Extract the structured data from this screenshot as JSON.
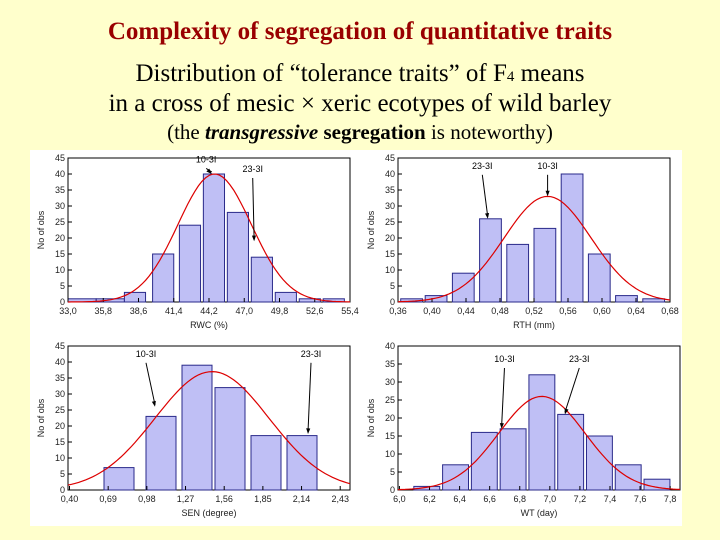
{
  "header": {
    "title": "Complexity of segregation of quantitative traits",
    "line1_pre": "Distribution of “tolerance traits” of F",
    "line1_sub": "4",
    "line1_post": " means",
    "line2": "in a cross of mesic × xeric ecotypes of wild barley",
    "line3_pre": "(the ",
    "line3_em": "transgressive",
    "line3_strong": " segregation",
    "line3_post": " is noteworthy)"
  },
  "colors": {
    "bar_fill": "#bfbff5",
    "bar_stroke": "#2a2a8a",
    "curve": "#dd0000",
    "axis": "#000000"
  },
  "chart_data": [
    {
      "type": "bar",
      "xlabel": "RWC (%)",
      "ylabel": "No of obs",
      "xticks": [
        "33,0",
        "35,8",
        "38,6",
        "41,4",
        "44,2",
        "47,0",
        "49,8",
        "52,6",
        "55,4"
      ],
      "ylim": [
        0,
        45
      ],
      "yticks": [
        0,
        5,
        10,
        15,
        20,
        25,
        30,
        35,
        40,
        45
      ],
      "bins": [
        {
          "lo": 0,
          "hi": 1,
          "count": 1
        },
        {
          "lo": 1,
          "hi": 2,
          "count": 1
        },
        {
          "lo": 2,
          "hi": 2.75,
          "count": 3
        },
        {
          "lo": 3,
          "hi": 3.75,
          "count": 15
        },
        {
          "lo": 3.95,
          "hi": 4.7,
          "count": 24
        },
        {
          "lo": 4.8,
          "hi": 5.55,
          "count": 40
        },
        {
          "lo": 5.65,
          "hi": 6.4,
          "count": 28
        },
        {
          "lo": 6.5,
          "hi": 7.25,
          "count": 14
        },
        {
          "lo": 7.35,
          "hi": 8.1,
          "count": 3
        },
        {
          "lo": 8.2,
          "hi": 8.95,
          "count": 1
        },
        {
          "lo": 9.05,
          "hi": 9.8,
          "count": 1
        }
      ],
      "curve": {
        "mean": 5.2,
        "sd": 1.3,
        "peak": 40
      },
      "annotations": [
        {
          "label": "10-3I",
          "x": 5.1,
          "y": 40,
          "label_x": 4.9,
          "label_y": 43
        },
        {
          "label": "23-3I",
          "x": 6.6,
          "y": 19,
          "label_x": 6.55,
          "label_y": 40
        }
      ]
    },
    {
      "type": "bar",
      "xlabel": "RTH (mm)",
      "ylabel": "No of obs",
      "xticks": [
        "0,36",
        "0,40",
        "0,44",
        "0,48",
        "0,52",
        "0,56",
        "0,60",
        "0,64",
        "0,68"
      ],
      "ylim": [
        0,
        45
      ],
      "yticks": [
        0,
        5,
        10,
        15,
        20,
        25,
        30,
        35,
        40,
        45
      ],
      "bins": [
        {
          "lo": 0.1,
          "hi": 0.9,
          "count": 1
        },
        {
          "lo": 1,
          "hi": 1.8,
          "count": 2
        },
        {
          "lo": 2,
          "hi": 2.8,
          "count": 9
        },
        {
          "lo": 3,
          "hi": 3.8,
          "count": 26
        },
        {
          "lo": 4,
          "hi": 4.8,
          "count": 18
        },
        {
          "lo": 5,
          "hi": 5.8,
          "count": 23
        },
        {
          "lo": 6,
          "hi": 6.8,
          "count": 40
        },
        {
          "lo": 7,
          "hi": 7.8,
          "count": 15
        },
        {
          "lo": 8,
          "hi": 8.8,
          "count": 2
        },
        {
          "lo": 9,
          "hi": 9.8,
          "count": 1
        }
      ],
      "curve": {
        "mean": 5.5,
        "sd": 1.6,
        "peak": 33
      },
      "annotations": [
        {
          "label": "23-3I",
          "x": 3.3,
          "y": 26,
          "label_x": 3.1,
          "label_y": 41
        },
        {
          "label": "10-3I",
          "x": 5.5,
          "y": 33,
          "label_x": 5.5,
          "label_y": 41
        }
      ]
    },
    {
      "type": "bar",
      "xlabel": "SEN (degree)",
      "ylabel": "No of obs",
      "xticks": [
        "0,40",
        "0,69",
        "0,98",
        "1,27",
        "1,56",
        "1,85",
        "2,14",
        "2,43"
      ],
      "ylim": [
        0,
        45
      ],
      "yticks": [
        0,
        5,
        10,
        15,
        20,
        25,
        30,
        35,
        40,
        45
      ],
      "bins": [
        {
          "lo": 1.2,
          "hi": 2.2,
          "count": 7
        },
        {
          "lo": 2.6,
          "hi": 3.6,
          "count": 23
        },
        {
          "lo": 3.8,
          "hi": 4.8,
          "count": 39
        },
        {
          "lo": 4.9,
          "hi": 5.9,
          "count": 32
        },
        {
          "lo": 6.1,
          "hi": 7.1,
          "count": 17
        },
        {
          "lo": 7.3,
          "hi": 8.3,
          "count": 17
        }
      ],
      "curve": {
        "mean": 4.8,
        "sd": 1.9,
        "peak": 37
      },
      "annotations": [
        {
          "label": "10-3I",
          "x": 2.9,
          "y": 26,
          "label_x": 2.6,
          "label_y": 41
        },
        {
          "label": "23-3I",
          "x": 8.0,
          "y": 17.5,
          "label_x": 8.1,
          "label_y": 41
        }
      ],
      "xlim": [
        0,
        9.4
      ]
    },
    {
      "type": "bar",
      "xlabel": "WT (day)",
      "ylabel": "No of obs",
      "xticks": [
        "6,0",
        "6,2",
        "6,4",
        "6,6",
        "6,8",
        "7,0",
        "7,2",
        "7,4",
        "7,6",
        "7,8"
      ],
      "ylim": [
        0,
        40
      ],
      "yticks": [
        0,
        5,
        10,
        15,
        20,
        25,
        30,
        35,
        40
      ],
      "bins": [
        {
          "lo": 0.05,
          "hi": 0.45,
          "count": 0
        },
        {
          "lo": 0.55,
          "hi": 1.45,
          "count": 1
        },
        {
          "lo": 1.55,
          "hi": 2.45,
          "count": 7
        },
        {
          "lo": 2.55,
          "hi": 3.45,
          "count": 16
        },
        {
          "lo": 3.55,
          "hi": 4.45,
          "count": 17
        },
        {
          "lo": 4.55,
          "hi": 5.45,
          "count": 32
        },
        {
          "lo": 5.55,
          "hi": 6.45,
          "count": 21
        },
        {
          "lo": 6.55,
          "hi": 7.45,
          "count": 15
        },
        {
          "lo": 7.55,
          "hi": 8.45,
          "count": 7
        },
        {
          "lo": 8.55,
          "hi": 9.45,
          "count": 3
        }
      ],
      "curve": {
        "mean": 5.0,
        "sd": 1.5,
        "peak": 26
      },
      "annotations": [
        {
          "label": "10-3I",
          "x": 3.6,
          "y": 17,
          "label_x": 3.7,
          "label_y": 35
        },
        {
          "label": "23-3I",
          "x": 5.8,
          "y": 21,
          "label_x": 6.3,
          "label_y": 35
        }
      ],
      "xlim": [
        0,
        9.8
      ]
    }
  ]
}
